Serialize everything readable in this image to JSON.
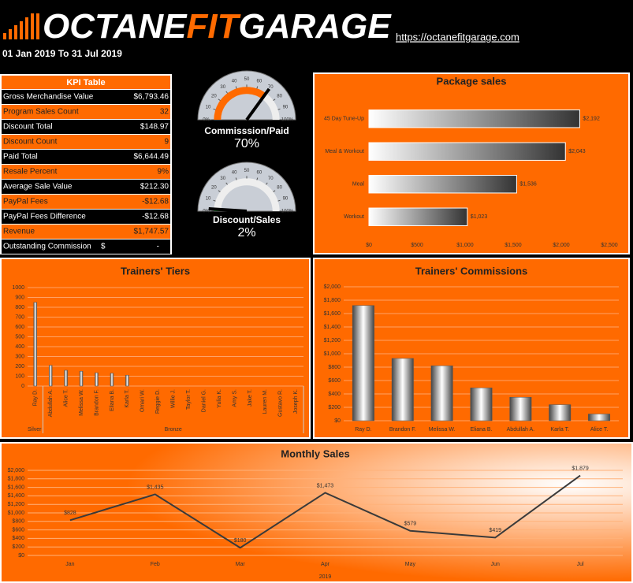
{
  "header": {
    "logo": [
      "OCTANE",
      "FIT",
      "GARAGE"
    ],
    "url": "https://octanefitgarage.com",
    "date_range": "01 Jan 2019 To 31 Jul 2019"
  },
  "kpi_table": {
    "title": "KPI Table",
    "rows": [
      [
        "Gross Merchandise Value",
        "$6,793.46"
      ],
      [
        "Program Sales Count",
        "32"
      ],
      [
        "Discount Total",
        "$148.97"
      ],
      [
        "Discount Count",
        "9"
      ],
      [
        "Paid Total",
        "$6,644.49"
      ],
      [
        "Resale Percent",
        "9%"
      ],
      [
        "Average Sale Value",
        "$212.30"
      ],
      [
        "PayPal Fees",
        "-$12.68"
      ],
      [
        "PayPal Fees Difference",
        "-$12.68"
      ],
      [
        "Revenue",
        "$1,747.57"
      ],
      [
        "Outstanding Commission",
        "$",
        "-"
      ]
    ]
  },
  "chart_data": [
    {
      "type": "gauge",
      "title": "Commisssion/Paid",
      "value": 70,
      "value_label": "70%",
      "color": "#ff6a00",
      "lim": [
        0,
        100
      ],
      "ticks": [
        {
          "value": 0,
          "label": "0%"
        },
        10,
        20,
        30,
        40,
        50,
        60,
        70,
        80,
        90,
        {
          "value": 100,
          "label": "100%"
        }
      ]
    },
    {
      "type": "gauge",
      "title": "Discount/Sales",
      "value": 2,
      "value_label": "2%",
      "color": "#2e9e3a",
      "lim": [
        0,
        100
      ],
      "ticks": [
        {
          "value": 0,
          "label": "0%"
        },
        10,
        20,
        30,
        40,
        50,
        60,
        70,
        80,
        90,
        {
          "value": 100,
          "label": "100%"
        }
      ]
    },
    {
      "type": "hbar",
      "title": "Package sales",
      "categories": [
        "45 Day Tune-Up",
        "Meal & Workout",
        "Meal",
        "Workout"
      ],
      "values": [
        2192,
        2043,
        1536,
        1023
      ],
      "value_labels": [
        "$2,192",
        "$2,043",
        "$1,536",
        "$1,023"
      ],
      "xlim": [
        0,
        2500
      ],
      "xticks": [
        {
          "value": 0,
          "label": "$0"
        },
        {
          "value": 500,
          "label": "$500"
        },
        {
          "value": 1000,
          "label": "$1,000"
        },
        {
          "value": 1500,
          "label": "$1,500"
        },
        {
          "value": 2000,
          "label": "$2,000"
        },
        {
          "value": 2500,
          "label": "$2,500"
        }
      ]
    },
    {
      "type": "bar",
      "title": "Trainers' Tiers",
      "groups": [
        {
          "name": "Silver",
          "categories": [
            "Ray D."
          ]
        },
        {
          "name": "Bronze",
          "categories": [
            "Abdullah A.",
            "Alice T.",
            "Melissa W.",
            "Brandon F.",
            "Eliana B.",
            "Karla T.",
            "Omari W.",
            "Reggie D.",
            "Willie J.",
            "Taylor T.",
            "Daniel G.",
            "Yulia K.",
            "Amy S.",
            "Jake T.",
            "Lauren M.",
            "Gustavo R.",
            "Joseph K."
          ]
        }
      ],
      "values": [
        850,
        210,
        160,
        150,
        135,
        130,
        110,
        0,
        0,
        0,
        0,
        0,
        0,
        0,
        0,
        0,
        0,
        0
      ],
      "ylim": [
        0,
        1000
      ],
      "yticks": [
        0,
        100,
        200,
        300,
        400,
        500,
        600,
        700,
        800,
        900,
        1000
      ],
      "grid": true
    },
    {
      "type": "bar",
      "title": "Trainers' Commissions",
      "categories": [
        "Ray D.",
        "Brandon F.",
        "Melissa W.",
        "Eliana B.",
        "Abdullah A.",
        "Karla T.",
        "Alice T."
      ],
      "values": [
        1720,
        930,
        820,
        490,
        350,
        240,
        100
      ],
      "ylim": [
        0,
        2000
      ],
      "yticks": [
        {
          "value": 0,
          "label": "$0"
        },
        {
          "value": 200,
          "label": "$200"
        },
        {
          "value": 400,
          "label": "$400"
        },
        {
          "value": 600,
          "label": "$600"
        },
        {
          "value": 800,
          "label": "$800"
        },
        {
          "value": 1000,
          "label": "$1,000"
        },
        {
          "value": 1200,
          "label": "$1,200"
        },
        {
          "value": 1400,
          "label": "$1,400"
        },
        {
          "value": 1600,
          "label": "$1,600"
        },
        {
          "value": 1800,
          "label": "$1,800"
        },
        {
          "value": 2000,
          "label": "$2,000"
        }
      ],
      "grid": true
    },
    {
      "type": "line",
      "title": "Monthly Sales",
      "x_label": "2019",
      "color": "#3a3a3a",
      "categories": [
        "Jan",
        "Feb",
        "Mar",
        "Apr",
        "May",
        "Jun",
        "Jul"
      ],
      "values": [
        828,
        1435,
        180,
        1473,
        579,
        419,
        1879
      ],
      "value_labels": [
        "$828",
        "$1,435",
        "$180",
        "$1,473",
        "$579",
        "$419",
        "$1,879"
      ],
      "ylim": [
        0,
        2000
      ],
      "yticks": [
        {
          "value": 0,
          "label": "$0"
        },
        {
          "value": 200,
          "label": "$200"
        },
        {
          "value": 400,
          "label": "$400"
        },
        {
          "value": 600,
          "label": "$600"
        },
        {
          "value": 800,
          "label": "$800"
        },
        {
          "value": 1000,
          "label": "$1,000"
        },
        {
          "value": 1200,
          "label": "$1,200"
        },
        {
          "value": 1400,
          "label": "$1,400"
        },
        {
          "value": 1600,
          "label": "$1,600"
        },
        {
          "value": 1800,
          "label": "$1,800"
        },
        {
          "value": 2000,
          "label": "$2,000"
        }
      ],
      "grid": true
    }
  ]
}
